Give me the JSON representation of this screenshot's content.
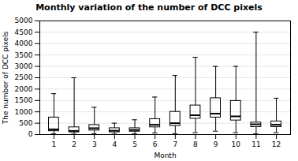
{
  "chart_data": {
    "type": "box",
    "title": "Monthly variation of the number of DCC pixels",
    "xlabel": "Month",
    "ylabel": "The number of DCC pixels",
    "x": [
      1,
      2,
      3,
      4,
      5,
      6,
      7,
      8,
      9,
      10,
      11,
      12
    ],
    "whislo": [
      30,
      20,
      40,
      20,
      30,
      70,
      40,
      80,
      150,
      80,
      30,
      80
    ],
    "q1": [
      150,
      100,
      180,
      100,
      130,
      320,
      380,
      700,
      750,
      620,
      330,
      330
    ],
    "median": [
      230,
      160,
      280,
      170,
      200,
      430,
      500,
      850,
      920,
      800,
      450,
      430
    ],
    "q3": [
      750,
      320,
      420,
      280,
      280,
      680,
      1000,
      1280,
      1600,
      1480,
      530,
      580
    ],
    "whishi": [
      1800,
      2500,
      1200,
      500,
      650,
      1650,
      2600,
      3400,
      3000,
      3000,
      4500,
      1600
    ],
    "xlim": [
      0.3,
      12.7
    ],
    "xticks": [
      1,
      2,
      3,
      4,
      5,
      6,
      7,
      8,
      9,
      10,
      11,
      12
    ],
    "ylim": [
      0,
      5000
    ],
    "yticks": [
      0,
      500,
      1000,
      1500,
      2000,
      2500,
      3000,
      3500,
      4000,
      4500,
      5000
    ],
    "grid": true
  }
}
